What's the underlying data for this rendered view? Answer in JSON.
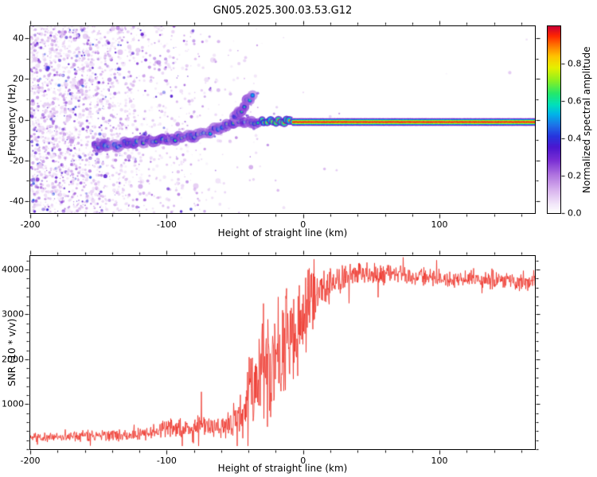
{
  "figure": {
    "title": "GN05.2025.300.03.53.G12"
  },
  "chart_data": [
    {
      "type": "heatmap",
      "name": "doppler-spectrogram",
      "title": "GN05.2025.300.03.53.G12",
      "xlabel": "Height of straight line (km)",
      "ylabel": "Frequency (Hz)",
      "xlim": [
        -200,
        170
      ],
      "ylim": [
        -46,
        46
      ],
      "xticks": [
        -200,
        -100,
        0,
        100
      ],
      "xtick_minor_step": 20,
      "yticks": [
        -40,
        -20,
        0,
        20,
        40
      ],
      "ytick_minor_step": 10,
      "grid": false,
      "colorbar": {
        "label": "Normalized spectral amplitude",
        "ticks": [
          "0.0",
          "0.2",
          "0.4",
          "0.6",
          "0.8"
        ],
        "tick_values": [
          0,
          0.2,
          0.4,
          0.6,
          0.8
        ],
        "range": [
          0,
          1
        ],
        "colormap_stops": [
          [
            0.0,
            "#ffffff"
          ],
          [
            0.05,
            "#f1e4f9"
          ],
          [
            0.12,
            "#d9b4ee"
          ],
          [
            0.2,
            "#b176e0"
          ],
          [
            0.28,
            "#7b2fd4"
          ],
          [
            0.35,
            "#4c17cf"
          ],
          [
            0.41,
            "#2734dd"
          ],
          [
            0.47,
            "#1d72e8"
          ],
          [
            0.53,
            "#00b5e8"
          ],
          [
            0.58,
            "#00e0bb"
          ],
          [
            0.64,
            "#23e86c"
          ],
          [
            0.71,
            "#8cf021"
          ],
          [
            0.78,
            "#e6f000"
          ],
          [
            0.84,
            "#ffc400"
          ],
          [
            0.9,
            "#ff7400"
          ],
          [
            0.95,
            "#ff2600"
          ],
          [
            1.0,
            "#cc0033"
          ]
        ]
      },
      "signal_track_hz_vs_km": [
        [
          -152,
          -13
        ],
        [
          -145,
          -12.5
        ],
        [
          -138,
          -13
        ],
        [
          -131,
          -11.5
        ],
        [
          -124,
          -12
        ],
        [
          -117,
          -10.5
        ],
        [
          -110,
          -11
        ],
        [
          -103,
          -10
        ],
        [
          -96,
          -9.5
        ],
        [
          -89,
          -8.5
        ],
        [
          -82,
          -8
        ],
        [
          -75,
          -7
        ],
        [
          -68,
          -6
        ],
        [
          -62,
          -4.5
        ],
        [
          -56,
          -3
        ],
        [
          -51,
          -1.5
        ],
        [
          -47,
          -0.5
        ],
        [
          -43,
          -1
        ],
        [
          -38,
          -1.5
        ],
        [
          -33,
          -1
        ]
      ],
      "upper_branch_hz_vs_km": [
        [
          -50,
          1
        ],
        [
          -47,
          3
        ],
        [
          -45,
          5
        ],
        [
          -43,
          7
        ],
        [
          -41,
          9
        ],
        [
          -39,
          10.5
        ],
        [
          -37,
          12
        ]
      ],
      "carrier": {
        "km_start": -8,
        "km_end": 170,
        "freq_hz": -0.8,
        "peak_amplitude": 1.0
      },
      "noise_density_by_km": [
        [
          -200,
          0.95
        ],
        [
          -170,
          0.8
        ],
        [
          -150,
          0.62
        ],
        [
          -130,
          0.45
        ],
        [
          -110,
          0.3
        ],
        [
          -90,
          0.18
        ],
        [
          -70,
          0.1
        ],
        [
          -50,
          0.05
        ],
        [
          -30,
          0.02
        ],
        [
          0,
          0.004
        ],
        [
          20,
          0.001
        ],
        [
          170,
          0.0005
        ]
      ]
    },
    {
      "type": "line",
      "name": "snr-profile",
      "xlabel": "Height of straight line (km)",
      "ylabel": "SNR (10 * v/v)",
      "xlim": [
        -200,
        170
      ],
      "ylim": [
        0,
        4300
      ],
      "xticks": [
        -200,
        -100,
        0,
        100
      ],
      "xtick_minor_step": 20,
      "yticks": [
        1000,
        2000,
        3000,
        4000
      ],
      "ytick_minor_step": 200,
      "grid": false,
      "line_color": "#ee2e24",
      "envelope_x_mean_noise": [
        [
          -200,
          270,
          120
        ],
        [
          -170,
          280,
          130
        ],
        [
          -150,
          300,
          150
        ],
        [
          -130,
          310,
          160
        ],
        [
          -115,
          360,
          200
        ],
        [
          -105,
          420,
          260
        ],
        [
          -95,
          480,
          300
        ],
        [
          -88,
          430,
          240
        ],
        [
          -80,
          450,
          260
        ],
        [
          -74,
          640,
          330
        ],
        [
          -70,
          560,
          280
        ],
        [
          -64,
          470,
          240
        ],
        [
          -58,
          520,
          300
        ],
        [
          -52,
          640,
          420
        ],
        [
          -46,
          800,
          600
        ],
        [
          -42,
          1000,
          850
        ],
        [
          -38,
          1500,
          1300
        ],
        [
          -34,
          1300,
          1100
        ],
        [
          -30,
          1600,
          1350
        ],
        [
          -26,
          1900,
          1500
        ],
        [
          -22,
          1900,
          1550
        ],
        [
          -18,
          2100,
          1600
        ],
        [
          -14,
          2300,
          1500
        ],
        [
          -10,
          2500,
          1400
        ],
        [
          -6,
          2650,
          1300
        ],
        [
          -2,
          2800,
          1200
        ],
        [
          2,
          3000,
          1050
        ],
        [
          6,
          3200,
          900
        ],
        [
          10,
          3400,
          750
        ],
        [
          15,
          3550,
          600
        ],
        [
          20,
          3700,
          480
        ],
        [
          28,
          3820,
          360
        ],
        [
          36,
          3900,
          290
        ],
        [
          50,
          3920,
          260
        ],
        [
          70,
          3890,
          250
        ],
        [
          90,
          3840,
          240
        ],
        [
          110,
          3800,
          230
        ],
        [
          130,
          3770,
          220
        ],
        [
          150,
          3730,
          220
        ],
        [
          170,
          3680,
          220
        ]
      ]
    }
  ]
}
